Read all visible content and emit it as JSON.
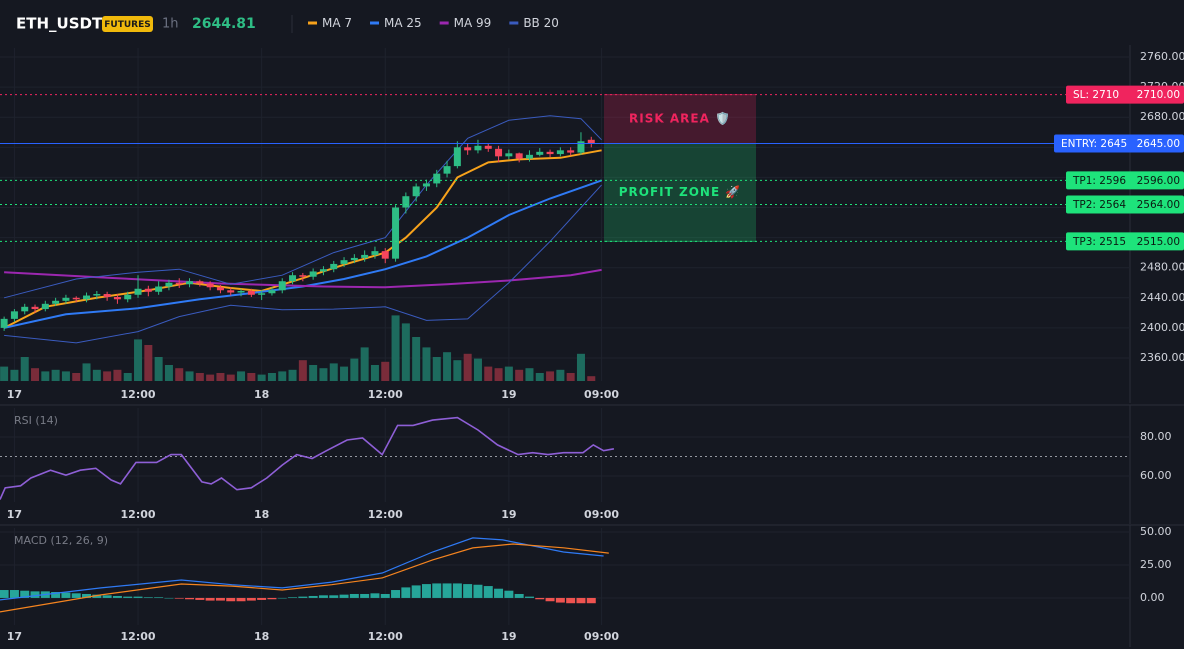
{
  "chart_data": [
    {
      "type": "candlestick",
      "title": "ETH_USDT",
      "badge": "FUTURES",
      "interval": "1h",
      "last_price": 2644.81,
      "up_color": "#2ebd85",
      "down_color": "#f6465d",
      "grid": true,
      "xlim": [
        -1.4,
        108.3
      ],
      "xticks": [
        {
          "value": 0,
          "label": "17"
        },
        {
          "value": 12,
          "label": "12:00"
        },
        {
          "value": 24,
          "label": "18"
        },
        {
          "value": 36,
          "label": "12:00"
        },
        {
          "value": 48,
          "label": "19"
        },
        {
          "value": 57,
          "label": "09:00"
        }
      ],
      "ylim": [
        2329.4,
        2772
      ],
      "yticks": [
        {
          "value": 2360,
          "label": "2360.00"
        },
        {
          "value": 2400,
          "label": "2400.00"
        },
        {
          "value": 2440,
          "label": "2440.00"
        },
        {
          "value": 2480,
          "label": "2480.00"
        },
        {
          "value": 2520,
          "label": "2520.00"
        },
        {
          "value": 2560,
          "label": "2560.00"
        },
        {
          "value": 2600,
          "label": "2600.00"
        },
        {
          "value": 2640,
          "label": "2640.00"
        },
        {
          "value": 2680,
          "label": "2680.00"
        },
        {
          "value": 2720,
          "label": "2720.00"
        },
        {
          "value": 2760,
          "label": "2760.00"
        }
      ],
      "x": [
        -1,
        0,
        1,
        2,
        3,
        4,
        5,
        6,
        7,
        8,
        9,
        10,
        11,
        12,
        13,
        14,
        15,
        16,
        17,
        18,
        19,
        20,
        21,
        22,
        23,
        24,
        25,
        26,
        27,
        28,
        29,
        30,
        31,
        32,
        33,
        34,
        35,
        36,
        37,
        38,
        39,
        40,
        41,
        42,
        43,
        44,
        45,
        46,
        47,
        48,
        49,
        50,
        51,
        52,
        53,
        54,
        55,
        56
      ],
      "open": [
        2400,
        2412,
        2422,
        2428,
        2425,
        2432,
        2436,
        2440,
        2438,
        2443,
        2445,
        2441,
        2438,
        2444,
        2452,
        2448,
        2455,
        2460,
        2458,
        2462,
        2459,
        2454,
        2450,
        2447,
        2449,
        2444,
        2446,
        2450,
        2462,
        2470,
        2468,
        2475,
        2478,
        2485,
        2490,
        2493,
        2497,
        2502,
        2492,
        2560,
        2575,
        2588,
        2592,
        2605,
        2615,
        2640,
        2636,
        2642,
        2638,
        2628,
        2632,
        2625,
        2630,
        2634,
        2631,
        2636,
        2633,
        2650
      ],
      "high": [
        2415,
        2425,
        2432,
        2431,
        2436,
        2440,
        2444,
        2442,
        2447,
        2449,
        2448,
        2445,
        2448,
        2470,
        2456,
        2462,
        2464,
        2466,
        2466,
        2464,
        2462,
        2457,
        2454,
        2452,
        2452,
        2450,
        2454,
        2466,
        2474,
        2473,
        2479,
        2482,
        2489,
        2494,
        2498,
        2503,
        2508,
        2506,
        2563,
        2580,
        2592,
        2597,
        2610,
        2622,
        2648,
        2645,
        2650,
        2645,
        2642,
        2637,
        2633,
        2636,
        2639,
        2637,
        2640,
        2640,
        2660,
        2654
      ],
      "low": [
        2396,
        2408,
        2418,
        2420,
        2422,
        2429,
        2432,
        2434,
        2434,
        2438,
        2436,
        2432,
        2434,
        2440,
        2442,
        2444,
        2450,
        2453,
        2454,
        2455,
        2450,
        2446,
        2443,
        2442,
        2441,
        2437,
        2443,
        2446,
        2458,
        2462,
        2464,
        2470,
        2474,
        2481,
        2486,
        2488,
        2492,
        2486,
        2488,
        2552,
        2568,
        2582,
        2587,
        2600,
        2612,
        2630,
        2632,
        2634,
        2620,
        2624,
        2620,
        2621,
        2628,
        2627,
        2628,
        2629,
        2630,
        2640
      ],
      "close": [
        2412,
        2422,
        2428,
        2425,
        2432,
        2436,
        2440,
        2438,
        2443,
        2445,
        2441,
        2438,
        2444,
        2452,
        2448,
        2455,
        2460,
        2458,
        2462,
        2459,
        2454,
        2450,
        2447,
        2449,
        2444,
        2446,
        2450,
        2462,
        2470,
        2468,
        2475,
        2478,
        2485,
        2490,
        2493,
        2497,
        2502,
        2492,
        2560,
        2575,
        2588,
        2592,
        2605,
        2615,
        2640,
        2636,
        2642,
        2638,
        2628,
        2632,
        2625,
        2630,
        2634,
        2631,
        2636,
        2633,
        2648,
        2644.81
      ],
      "volume": {
        "ylim": [
          0,
          125
        ],
        "up_color": "#1d6b5e",
        "down_color": "#7a2c3a",
        "values": [
          18,
          14,
          30,
          16,
          12,
          14,
          12,
          10,
          22,
          14,
          12,
          14,
          10,
          52,
          45,
          30,
          20,
          16,
          12,
          10,
          8,
          10,
          8,
          12,
          10,
          8,
          10,
          12,
          14,
          26,
          20,
          16,
          22,
          18,
          28,
          42,
          20,
          24,
          82,
          72,
          55,
          42,
          30,
          36,
          26,
          34,
          28,
          18,
          16,
          18,
          14,
          16,
          10,
          12,
          14,
          10,
          34,
          6
        ]
      },
      "series": [
        {
          "name": "MA 7",
          "color": "#f7a21b",
          "x": [
            -1,
            3,
            8,
            13,
            17,
            21,
            24,
            28,
            32,
            36,
            38,
            41,
            43,
            46,
            49,
            53,
            57
          ],
          "values": [
            2400,
            2428,
            2440,
            2450,
            2460,
            2453,
            2449,
            2466,
            2484,
            2500,
            2520,
            2560,
            2600,
            2620,
            2624,
            2626,
            2636
          ]
        },
        {
          "name": "MA 25",
          "color": "#2f7af5",
          "x": [
            -1,
            5,
            12,
            18,
            24,
            28,
            32,
            36,
            40,
            44,
            48,
            52,
            57
          ],
          "values": [
            2400,
            2418,
            2426,
            2438,
            2448,
            2455,
            2465,
            2478,
            2495,
            2520,
            2550,
            2572,
            2596
          ]
        },
        {
          "name": "MA 99",
          "color": "#9c27b0",
          "x": [
            -1,
            10,
            20,
            30,
            36,
            42,
            48,
            54,
            57
          ],
          "values": [
            2474,
            2466,
            2459,
            2455,
            2454,
            2458,
            2463,
            2470,
            2477
          ]
        },
        {
          "name": "BB 20",
          "color": "#3a5bbf",
          "x": [
            -1,
            6,
            12,
            16,
            21,
            26,
            31,
            36,
            40,
            44,
            48,
            52,
            55,
            57
          ],
          "upper": [
            2440,
            2465,
            2474,
            2478,
            2458,
            2470,
            2500,
            2520,
            2590,
            2652,
            2676,
            2682,
            2678,
            2650
          ],
          "lower": [
            2390,
            2380,
            2395,
            2415,
            2430,
            2424,
            2425,
            2428,
            2410,
            2412,
            2460,
            2515,
            2560,
            2590
          ]
        }
      ],
      "levels": [
        {
          "label": "SL: 2710",
          "value": 2710,
          "axis_label": "2710.00",
          "color": "#f0245e"
        },
        {
          "label": "ENTRY: 2645",
          "value": 2645,
          "axis_label": "2645.00",
          "color": "#2962ff"
        },
        {
          "label": "TP1: 2596",
          "value": 2596,
          "axis_label": "2596.00",
          "color": "#1ee37b"
        },
        {
          "label": "TP2: 2564",
          "value": 2564,
          "axis_label": "2564.00",
          "color": "#1ee37b"
        },
        {
          "label": "TP3: 2515",
          "value": 2515,
          "axis_label": "2515.00",
          "color": "#1ee37b"
        }
      ],
      "zones": [
        {
          "label": "RISK AREA 🛡️",
          "from": 2645,
          "to": 2710,
          "color": "#f0245e"
        },
        {
          "label": "PROFIT ZONE 🚀",
          "from": 2515,
          "to": 2645,
          "color": "#1ee37b"
        }
      ]
    },
    {
      "type": "line",
      "title": "RSI (14)",
      "grid": true,
      "ref_line": 70,
      "xlim": [
        -1.4,
        108.3
      ],
      "xticks": [
        {
          "value": 0,
          "label": "17"
        },
        {
          "value": 12,
          "label": "12:00"
        },
        {
          "value": 24,
          "label": "18"
        },
        {
          "value": 36,
          "label": "12:00"
        },
        {
          "value": 48,
          "label": "19"
        },
        {
          "value": 57,
          "label": "09:00"
        }
      ],
      "ylim": [
        46.7,
        94.9
      ],
      "yticks": [
        {
          "value": 60,
          "label": "60.00"
        },
        {
          "value": 80,
          "label": "80.00"
        }
      ],
      "series": [
        {
          "color": "#8e5fd6",
          "x": [
            -1.4,
            -0.9,
            0.6,
            1.6,
            3.5,
            5,
            6.4,
            7.9,
            9.4,
            10.3,
            11.8,
            13.8,
            15.2,
            16.2,
            18.2,
            19.1,
            20.1,
            21.6,
            23,
            24.5,
            26,
            27.4,
            28.9,
            30.3,
            32.3,
            33.8,
            35.7,
            37.2,
            38.7,
            40.6,
            43,
            45,
            46.9,
            48.9,
            50.3,
            51.8,
            53.3,
            55.2,
            56.2,
            57.2,
            58.2
          ],
          "values": [
            48,
            54,
            55,
            59,
            63,
            60.5,
            63,
            64,
            58,
            56,
            67,
            67,
            71,
            71,
            57,
            56,
            59,
            53,
            54,
            59,
            65.6,
            71,
            69,
            73,
            78.5,
            79.5,
            71,
            86,
            86,
            88.7,
            90,
            83.6,
            76,
            71,
            72,
            71,
            72,
            72,
            76,
            73,
            74
          ]
        }
      ]
    },
    {
      "type": "macd",
      "title": "MACD (12, 26, 9)",
      "grid": true,
      "xlim": [
        -1.4,
        108.3
      ],
      "xticks": [
        {
          "value": 0,
          "label": "17"
        },
        {
          "value": 12,
          "label": "12:00"
        },
        {
          "value": 24,
          "label": "18"
        },
        {
          "value": 36,
          "label": "12:00"
        },
        {
          "value": 48,
          "label": "19"
        },
        {
          "value": 57,
          "label": "09:00"
        }
      ],
      "ylim": [
        -20.5,
        53
      ],
      "yticks": [
        {
          "value": 0,
          "label": "0.00"
        },
        {
          "value": 25,
          "label": "25.00"
        },
        {
          "value": 50,
          "label": "50.00"
        }
      ],
      "histogram": {
        "up_color": "#26a69a",
        "down_color": "#ef5350",
        "x": [
          -1,
          0,
          1,
          2,
          3,
          4,
          5,
          6,
          7,
          8,
          9,
          10,
          11,
          12,
          13,
          14,
          15,
          16,
          17,
          18,
          19,
          20,
          21,
          22,
          23,
          24,
          25,
          26,
          27,
          28,
          29,
          30,
          31,
          32,
          33,
          34,
          35,
          36,
          37,
          38,
          39,
          40,
          41,
          42,
          43,
          44,
          45,
          46,
          47,
          48,
          49,
          50,
          51,
          52,
          53,
          54,
          55,
          56
        ],
        "values": [
          6,
          6,
          5.5,
          5,
          5,
          4.5,
          4,
          3.5,
          3,
          2.5,
          2,
          1.5,
          1,
          1,
          0.5,
          0.5,
          0,
          -0.5,
          -1,
          -1.5,
          -2,
          -2,
          -2.5,
          -2.5,
          -2,
          -1.5,
          -1,
          0,
          0.5,
          1,
          1.5,
          2,
          2,
          2.5,
          3,
          3,
          3.5,
          3,
          6,
          8,
          9.5,
          10.5,
          11,
          11,
          11,
          10.5,
          10,
          9,
          7,
          5.5,
          3,
          1,
          -1,
          -2.5,
          -3.5,
          -4,
          -4,
          -4
        ]
      },
      "series": [
        {
          "color": "#2f7af5",
          "x": [
            -1.4,
            8.4,
            16.2,
            21.1,
            26,
            30.8,
            35.7,
            40.6,
            44.5,
            47.4,
            49.4,
            53.3,
            57.2
          ],
          "values": [
            -1.5,
            7.6,
            13.6,
            10,
            7.6,
            12,
            18.9,
            34.8,
            45.5,
            44,
            40.9,
            34.8,
            31.8
          ]
        },
        {
          "color": "#f5841f",
          "x": [
            -1.4,
            8.4,
            16.2,
            21.1,
            26,
            30.8,
            35.7,
            40.6,
            44.5,
            48.4,
            53.3,
            57.7
          ],
          "values": [
            -10.6,
            2.3,
            10.6,
            9,
            6,
            10,
            15.2,
            28.8,
            37.9,
            40.9,
            38,
            34
          ]
        }
      ]
    }
  ]
}
